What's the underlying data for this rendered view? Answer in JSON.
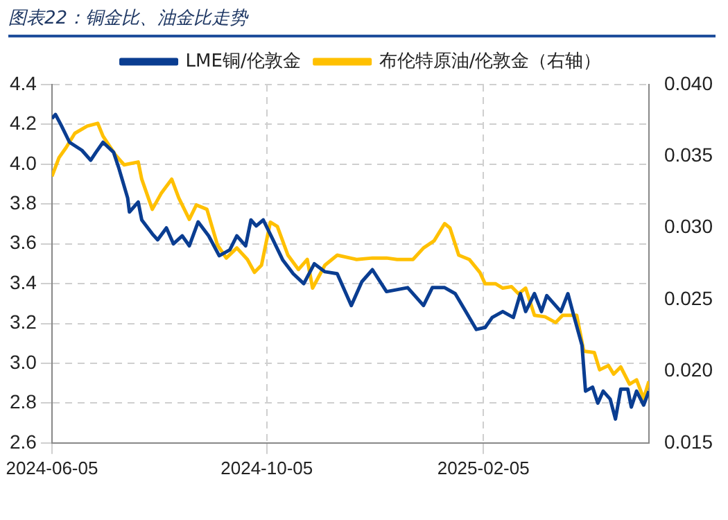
{
  "chart_data": {
    "type": "line",
    "title": "图表22：铜金比、油金比走势",
    "xlim": [
      "2024-06-05",
      "2025-05-10"
    ],
    "xticks": [
      "2024-06-05",
      "2024-10-05",
      "2025-02-05"
    ],
    "ylim": [
      2.6,
      4.4
    ],
    "yticks": [
      2.6,
      2.8,
      {
        "value": 3,
        "label": "3.0"
      },
      3.2,
      3.4,
      3.6,
      3.8,
      {
        "value": 4,
        "label": "4.0"
      },
      4.2,
      4.4
    ],
    "y2lim": [
      0.015,
      0.04
    ],
    "y2ticks": [
      0.015,
      {
        "value": 0.02,
        "label": "0.020"
      },
      0.025,
      {
        "value": 0.03,
        "label": "0.030"
      },
      0.035,
      {
        "value": 0.04,
        "label": "0.040"
      }
    ],
    "grid": true,
    "legend": "top",
    "marker": "none",
    "line_style": "solid",
    "series": [
      {
        "name": "LME铜/伦敦金",
        "color": "#0a3d91",
        "x": [
          "2024-06-05",
          "2024-06-07",
          "2024-06-10",
          "2024-06-15",
          "2024-06-22",
          "2024-06-27",
          "2024-06-30",
          "2024-07-04",
          "2024-07-10",
          "2024-07-13",
          "2024-07-18",
          "2024-07-19",
          "2024-07-24",
          "2024-07-26",
          "2024-08-01",
          "2024-08-04",
          "2024-08-09",
          "2024-08-13",
          "2024-08-18",
          "2024-08-22",
          "2024-08-27",
          "2024-09-02",
          "2024-09-08",
          "2024-09-14",
          "2024-09-18",
          "2024-09-23",
          "2024-09-26",
          "2024-09-29",
          "2024-10-03",
          "2024-10-08",
          "2024-10-14",
          "2024-10-20",
          "2024-10-26",
          "2024-11-01",
          "2024-11-07",
          "2024-11-14",
          "2024-11-22",
          "2024-11-28",
          "2024-12-04",
          "2024-12-12",
          "2024-12-24",
          "2025-01-02",
          "2025-01-07",
          "2025-01-14",
          "2025-01-20",
          "2025-01-26",
          "2025-02-01",
          "2025-02-06",
          "2025-02-10",
          "2025-02-16",
          "2025-02-22",
          "2025-02-26",
          "2025-03-01",
          "2025-03-06",
          "2025-03-10",
          "2025-03-13",
          "2025-03-21",
          "2025-03-25",
          "2025-03-28",
          "2025-04-02",
          "2025-04-04",
          "2025-04-08",
          "2025-04-11",
          "2025-04-14",
          "2025-04-18",
          "2025-04-21",
          "2025-04-24",
          "2025-04-28",
          "2025-04-30",
          "2025-05-03",
          "2025-05-07",
          "2025-05-10"
        ],
        "values": [
          4.23,
          4.25,
          4.2,
          4.11,
          4.07,
          4.02,
          4.06,
          4.11,
          4.06,
          3.98,
          3.83,
          3.76,
          3.81,
          3.72,
          3.65,
          3.62,
          3.68,
          3.6,
          3.64,
          3.59,
          3.71,
          3.64,
          3.54,
          3.57,
          3.64,
          3.59,
          3.72,
          3.69,
          3.72,
          3.63,
          3.52,
          3.45,
          3.4,
          3.5,
          3.46,
          3.45,
          3.29,
          3.41,
          3.47,
          3.36,
          3.38,
          3.29,
          3.38,
          3.38,
          3.35,
          3.26,
          3.17,
          3.18,
          3.23,
          3.26,
          3.23,
          3.35,
          3.26,
          3.35,
          3.26,
          3.34,
          3.26,
          3.35,
          3.25,
          3.09,
          2.86,
          2.88,
          2.8,
          2.86,
          2.82,
          2.72,
          2.87,
          2.87,
          2.78,
          2.86,
          2.79,
          2.86
        ]
      },
      {
        "name": "布伦特原油/伦敦金（右轴）",
        "color": "#ffc000",
        "axis": "y2",
        "x": [
          "2024-06-05",
          "2024-06-09",
          "2024-06-13",
          "2024-06-18",
          "2024-06-25",
          "2024-07-01",
          "2024-07-04",
          "2024-07-11",
          "2024-07-16",
          "2024-07-24",
          "2024-07-26",
          "2024-08-01",
          "2024-08-06",
          "2024-08-12",
          "2024-08-16",
          "2024-08-22",
          "2024-08-26",
          "2024-09-01",
          "2024-09-07",
          "2024-09-12",
          "2024-09-18",
          "2024-09-24",
          "2024-09-28",
          "2024-10-02",
          "2024-10-07",
          "2024-10-11",
          "2024-10-17",
          "2024-10-23",
          "2024-10-28",
          "2024-10-31",
          "2024-11-07",
          "2024-11-14",
          "2024-11-25",
          "2024-12-04",
          "2024-12-12",
          "2024-12-18",
          "2024-12-27",
          "2025-01-02",
          "2025-01-08",
          "2025-01-14",
          "2025-01-17",
          "2025-01-22",
          "2025-01-28",
          "2025-02-03",
          "2025-02-06",
          "2025-02-12",
          "2025-02-16",
          "2025-02-21",
          "2025-02-25",
          "2025-03-01",
          "2025-03-06",
          "2025-03-12",
          "2025-03-18",
          "2025-03-22",
          "2025-03-30",
          "2025-04-03",
          "2025-04-09",
          "2025-04-12",
          "2025-04-17",
          "2025-04-20",
          "2025-04-24",
          "2025-04-29",
          "2025-05-03",
          "2025-05-07",
          "2025-05-10"
        ],
        "values": [
          0.0336,
          0.0349,
          0.0356,
          0.0366,
          0.0371,
          0.0373,
          0.0364,
          0.0351,
          0.0344,
          0.0346,
          0.0334,
          0.0313,
          0.0324,
          0.0334,
          0.0321,
          0.0306,
          0.0316,
          0.0313,
          0.0288,
          0.0279,
          0.0286,
          0.0278,
          0.0269,
          0.0274,
          0.0304,
          0.0301,
          0.0281,
          0.0271,
          0.0278,
          0.0258,
          0.0274,
          0.0281,
          0.0278,
          0.0279,
          0.0279,
          0.0278,
          0.0278,
          0.0286,
          0.0291,
          0.0303,
          0.03,
          0.0281,
          0.0278,
          0.0269,
          0.0261,
          0.0261,
          0.0258,
          0.0259,
          0.0254,
          0.0258,
          0.0239,
          0.0238,
          0.0234,
          0.0239,
          0.0239,
          0.0214,
          0.0213,
          0.0201,
          0.0204,
          0.0198,
          0.0203,
          0.0191,
          0.0194,
          0.0181,
          0.0193
        ]
      }
    ]
  }
}
